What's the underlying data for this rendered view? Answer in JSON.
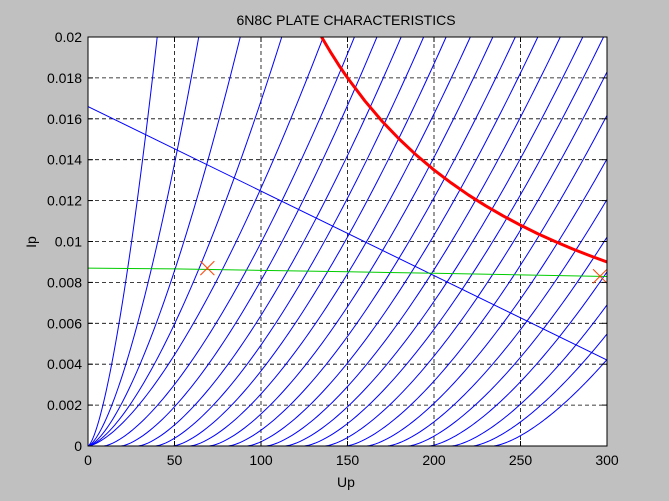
{
  "figure": {
    "background": "#c0c0c0"
  },
  "chart_data": {
    "type": "line",
    "title": "6N8C PLATE CHARACTERISTICS",
    "xlabel": "Up",
    "ylabel": "Ip",
    "xlim": [
      0,
      300
    ],
    "ylim": [
      0,
      0.02
    ],
    "xticks": [
      0,
      50,
      100,
      150,
      200,
      250,
      300
    ],
    "xtick_labels": [
      "0",
      "50",
      "100",
      "150",
      "200",
      "250",
      "300"
    ],
    "yticks": [
      0,
      0.002,
      0.004,
      0.006,
      0.008,
      0.01,
      0.012,
      0.014,
      0.016,
      0.018,
      0.02
    ],
    "ytick_labels": [
      "0",
      "0.002",
      "0.004",
      "0.006",
      "0.008",
      "0.01",
      "0.012",
      "0.014",
      "0.016",
      "0.018",
      "0.02"
    ],
    "grid": true,
    "plate_curve_color": "#0000ff",
    "plate_curves": {
      "exponent": 1.5,
      "reference_current": 0.02,
      "curves": [
        {
          "x0": 0,
          "x_at_ref": 40
        },
        {
          "x0": 0,
          "x_at_ref": 64
        },
        {
          "x0": 0,
          "x_at_ref": 88
        },
        {
          "x0": 0,
          "x_at_ref": 112
        },
        {
          "x0": 0,
          "x_at_ref": 136
        },
        {
          "x0": 9,
          "x_at_ref": 154
        },
        {
          "x0": 19,
          "x_at_ref": 167
        },
        {
          "x0": 29,
          "x_at_ref": 181
        },
        {
          "x0": 39,
          "x_at_ref": 194
        },
        {
          "x0": 49,
          "x_at_ref": 207
        },
        {
          "x0": 59,
          "x_at_ref": 221
        },
        {
          "x0": 70,
          "x_at_ref": 234
        },
        {
          "x0": 81,
          "x_at_ref": 247
        },
        {
          "x0": 92,
          "x_at_ref": 260
        },
        {
          "x0": 103,
          "x_at_ref": 273
        },
        {
          "x0": 114,
          "x_at_ref": 286
        },
        {
          "x0": 125,
          "x_at_ref": 298
        },
        {
          "x0": 137,
          "x_at_ref": 310
        },
        {
          "x0": 149,
          "x_at_ref": 323
        },
        {
          "x0": 161,
          "x_at_ref": 337
        },
        {
          "x0": 173,
          "x_at_ref": 351
        },
        {
          "x0": 185,
          "x_at_ref": 365
        },
        {
          "x0": 197,
          "x_at_ref": 379
        },
        {
          "x0": 210,
          "x_at_ref": 393
        },
        {
          "x0": 222,
          "x_at_ref": 407
        },
        {
          "x0": 234,
          "x_at_ref": 420
        }
      ]
    },
    "series": [
      {
        "role": "load-line",
        "color": "#0000ff",
        "x": [
          0,
          300
        ],
        "y": [
          0.0166,
          0.0042
        ]
      },
      {
        "role": "bias-line",
        "color": "#00cc00",
        "x": [
          0,
          50,
          100,
          150,
          200,
          250,
          300
        ],
        "y": [
          0.0087,
          0.00866,
          0.00859,
          0.00852,
          0.00845,
          0.00837,
          0.00829
        ]
      },
      {
        "role": "max-dissipation",
        "color": "#ff0000",
        "x": [
          135,
          140,
          145,
          150,
          160,
          170,
          180,
          190,
          200,
          210,
          220,
          230,
          240,
          250,
          260,
          270,
          280,
          290,
          300
        ],
        "y": [
          0.02,
          0.01929,
          0.01862,
          0.018,
          0.01688,
          0.01588,
          0.015,
          0.01421,
          0.0135,
          0.01286,
          0.01227,
          0.01174,
          0.01125,
          0.0108,
          0.01038,
          0.01,
          0.00964,
          0.00931,
          0.009
        ]
      }
    ],
    "markers": [
      {
        "x": 69,
        "y": 0.0087,
        "symbol": "x",
        "color": "#ff4000"
      },
      {
        "x": 296,
        "y": 0.0083,
        "symbol": "x",
        "color": "#ff4000"
      }
    ]
  }
}
